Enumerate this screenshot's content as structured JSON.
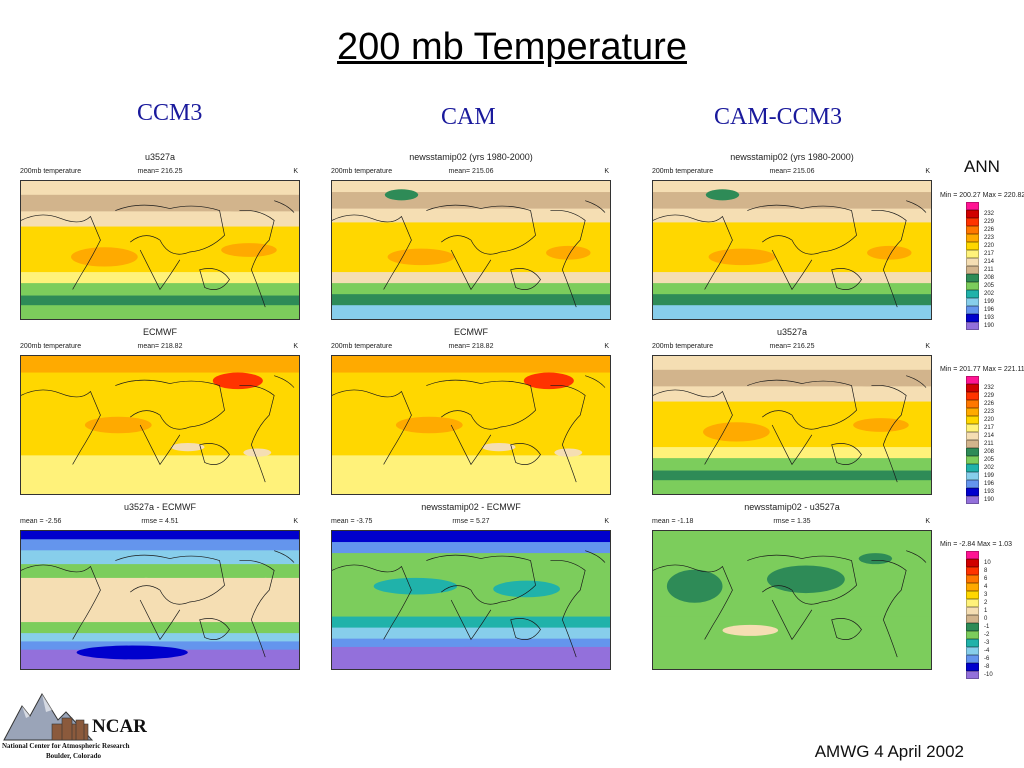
{
  "title": "200 mb Temperature",
  "columns": [
    "CCM3",
    "CAM",
    "CAM-CCM3"
  ],
  "panels": [
    {
      "title": "u3527a",
      "left": "200mb temperature",
      "mid": "mean= 216.25",
      "right": "K",
      "pattern": "abs_model"
    },
    {
      "title": "newsstamip02 (yrs 1980-2000)",
      "left": "200mb temperature",
      "mid": "mean= 215.06",
      "right": "K",
      "pattern": "abs_cam"
    },
    {
      "title": "newsstamip02 (yrs 1980-2000)",
      "left": "200mb temperature",
      "mid": "mean= 215.06",
      "right": "K",
      "pattern": "abs_cam"
    },
    {
      "title": "ECMWF",
      "left": "200mb temperature",
      "mid": "mean= 218.82",
      "right": "K",
      "pattern": "abs_obs"
    },
    {
      "title": "ECMWF",
      "left": "200mb temperature",
      "mid": "mean= 218.82",
      "right": "K",
      "pattern": "abs_obs"
    },
    {
      "title": "u3527a",
      "left": "200mb temperature",
      "mid": "mean= 216.25",
      "right": "K",
      "pattern": "abs_model"
    },
    {
      "title": "u3527a - ECMWF",
      "left": "mean = -2.56",
      "mid": "rmse = 4.51",
      "right": "K",
      "pattern": "diff_ccm3"
    },
    {
      "title": "newsstamip02 - ECMWF",
      "left": "mean = -3.75",
      "mid": "rmse = 5.27",
      "right": "K",
      "pattern": "diff_cam"
    },
    {
      "title": "newsstamip02 - u3527a",
      "left": "mean = -1.18",
      "mid": "rmse = 1.35",
      "right": "K",
      "pattern": "diff_small"
    }
  ],
  "colorbars": [
    {
      "range": "Min = 200.27 Max = 220.82",
      "labels": [
        "232",
        "229",
        "226",
        "223",
        "220",
        "217",
        "214",
        "211",
        "208",
        "205",
        "202",
        "199",
        "196",
        "193",
        "190"
      ]
    },
    {
      "range": "Min = 201.77 Max = 221.11",
      "labels": [
        "232",
        "229",
        "226",
        "223",
        "220",
        "217",
        "214",
        "211",
        "208",
        "205",
        "202",
        "199",
        "196",
        "193",
        "190"
      ]
    },
    {
      "range": "Min = -2.84 Max = 1.03",
      "labels": [
        "10",
        "8",
        "6",
        "4",
        "3",
        "2",
        "1",
        "0",
        "-1",
        "-2",
        "-3",
        "-4",
        "-6",
        "-8",
        "-10"
      ]
    }
  ],
  "colors": [
    "#ff1493",
    "#d00000",
    "#ff3300",
    "#ff7700",
    "#ffaa00",
    "#ffd700",
    "#fff27a",
    "#f5deb3",
    "#d2b48c",
    "#2e8b57",
    "#7ccd5c",
    "#20b2aa",
    "#87ceeb",
    "#6495ed",
    "#0000cd",
    "#9370db"
  ],
  "season_label": "ANN",
  "footer": "AMWG 4 April 2002",
  "logo": {
    "name": "NCAR",
    "line1": "National Center for Atmospheric Research",
    "line2": "Boulder, Colorado"
  }
}
